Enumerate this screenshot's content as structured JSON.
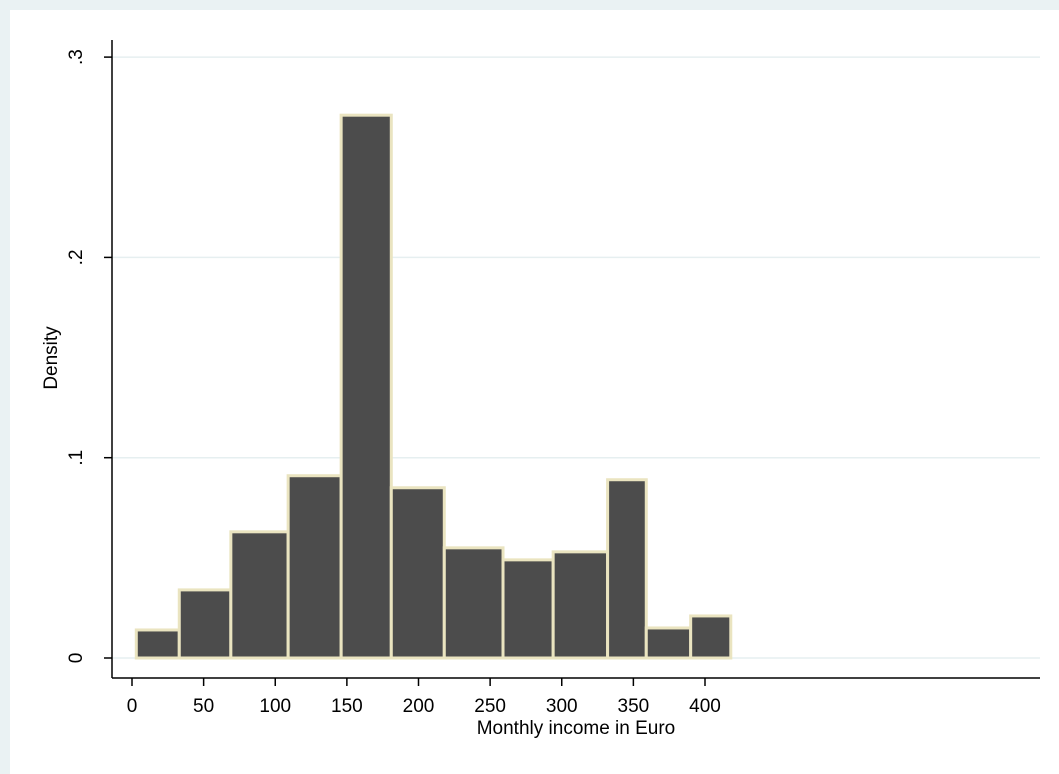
{
  "chart_data": {
    "type": "bar",
    "xlabel": "Monthly income in Euro",
    "ylabel": "Density",
    "xlim": [
      0,
      420
    ],
    "ylim": [
      0,
      0.3
    ],
    "x_ticks": [
      0,
      50,
      100,
      150,
      200,
      250,
      300,
      350,
      400
    ],
    "x_tick_labels": [
      "0",
      "50",
      "100",
      "150",
      "200",
      "250",
      "300",
      "350",
      "400"
    ],
    "y_ticks": [
      0,
      0.1,
      0.2,
      0.3
    ],
    "y_tick_labels": [
      "0",
      ".1",
      ".2",
      ".3"
    ],
    "grid": true,
    "bar_color": "#4c4c4c",
    "bar_edge_color": "#eae4c0",
    "bins": [
      {
        "x0": 3,
        "x1": 33,
        "value": 0.014
      },
      {
        "x0": 33,
        "x1": 69,
        "value": 0.034
      },
      {
        "x0": 69,
        "x1": 109,
        "value": 0.063
      },
      {
        "x0": 109,
        "x1": 146,
        "value": 0.091
      },
      {
        "x0": 146,
        "x1": 181,
        "value": 0.271
      },
      {
        "x0": 181,
        "x1": 218,
        "value": 0.085
      },
      {
        "x0": 218,
        "x1": 259,
        "value": 0.055
      },
      {
        "x0": 259,
        "x1": 294,
        "value": 0.049
      },
      {
        "x0": 294,
        "x1": 332,
        "value": 0.053
      },
      {
        "x0": 332,
        "x1": 359,
        "value": 0.089
      },
      {
        "x0": 359,
        "x1": 390,
        "value": 0.015
      },
      {
        "x0": 390,
        "x1": 418,
        "value": 0.021
      }
    ]
  }
}
